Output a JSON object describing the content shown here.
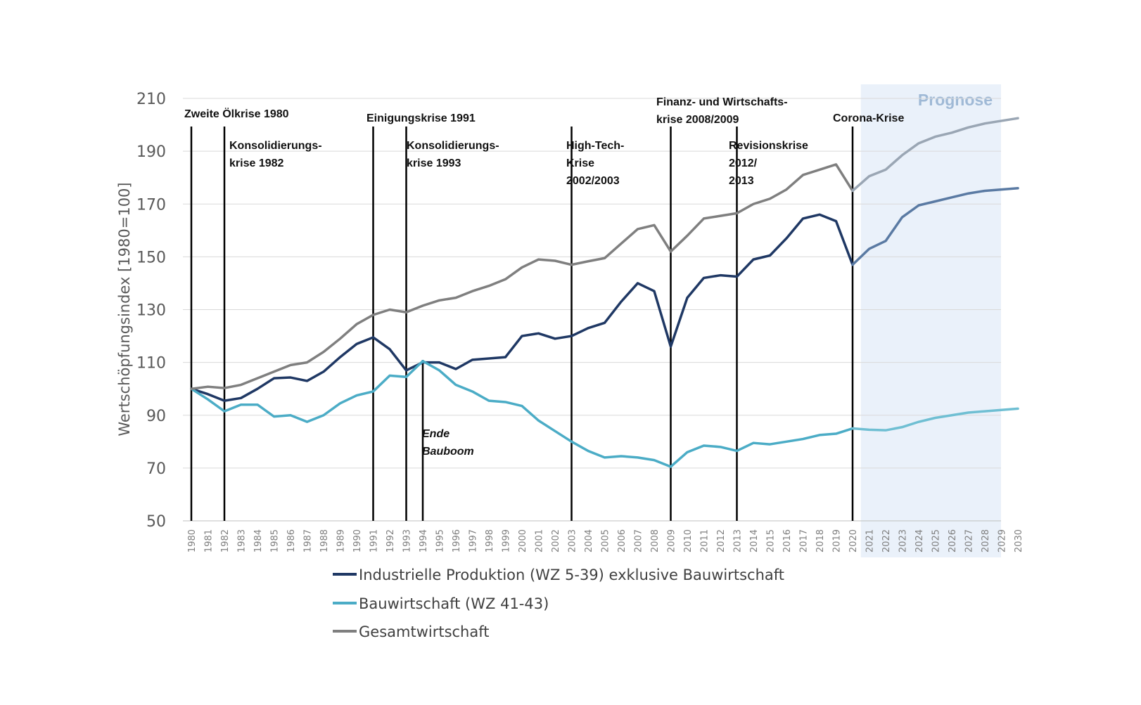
{
  "chart_data": {
    "type": "line",
    "title": "",
    "ylabel": "Wertschöpfungsindex [1980=100]",
    "xlabel": "",
    "ylim": [
      50,
      210
    ],
    "yticks": [
      50,
      70,
      90,
      110,
      130,
      150,
      170,
      190,
      210
    ],
    "grid": true,
    "legend_position": "bottom",
    "x": [
      1980,
      1981,
      1982,
      1983,
      1984,
      1985,
      1986,
      1987,
      1988,
      1989,
      1990,
      1991,
      1992,
      1993,
      1994,
      1995,
      1996,
      1997,
      1998,
      1999,
      2000,
      2001,
      2002,
      2003,
      2004,
      2005,
      2006,
      2007,
      2008,
      2009,
      2010,
      2011,
      2012,
      2013,
      2014,
      2015,
      2016,
      2017,
      2018,
      2019,
      2020,
      2021,
      2022,
      2023,
      2024,
      2025,
      2026,
      2027,
      2028,
      2029,
      2030
    ],
    "forecast_start": 2021,
    "forecast_label": "Prognose",
    "series": [
      {
        "name": "Industrielle Produktion (WZ 5-39) exklusive Bauwirtschaft",
        "color": "#1f3864",
        "forecast_color": "#5a7aa3",
        "values": [
          100,
          98,
          95.5,
          96.5,
          100,
          104,
          104.3,
          103,
          106.5,
          112,
          117,
          119.5,
          115,
          107,
          110,
          110,
          107.5,
          111,
          111.5,
          112,
          120,
          121,
          119,
          120,
          123,
          125,
          133,
          140,
          137,
          116,
          134.5,
          142,
          143,
          142.5,
          149,
          150.5,
          157,
          164.5,
          166,
          163.5,
          147,
          153,
          156,
          165,
          169.5,
          171,
          172.5,
          174,
          175,
          175.5,
          176
        ]
      },
      {
        "name": "Bauwirtschaft (WZ 41-43)",
        "color": "#4bacc6",
        "forecast_color": "#6fbfd3",
        "values": [
          100,
          96,
          91.5,
          94,
          94,
          89.5,
          90,
          87.5,
          90,
          94.5,
          97.5,
          99,
          105,
          104.5,
          110.5,
          107,
          101.5,
          99,
          95.5,
          95,
          93.5,
          88,
          84,
          80,
          76.5,
          74,
          74.5,
          74,
          73,
          70.5,
          76,
          78.5,
          78,
          76.5,
          79.5,
          79,
          80,
          81,
          82.5,
          83,
          85,
          84.5,
          84.3,
          85.5,
          87.5,
          89,
          90,
          91,
          91.5,
          92,
          92.5
        ]
      },
      {
        "name": "Gesamtwirtschaft",
        "color": "#7f7f7f",
        "forecast_color": "#9aa6b4",
        "values": [
          100,
          100.8,
          100.3,
          101.5,
          104,
          106.5,
          109,
          110,
          114,
          119,
          124.5,
          128,
          130,
          129,
          131.5,
          133.5,
          134.5,
          137,
          139,
          141.5,
          146,
          149,
          148.5,
          147,
          148.3,
          149.5,
          155,
          160.5,
          162,
          152,
          158,
          164.5,
          165.5,
          166.5,
          170,
          172,
          175.5,
          181,
          183,
          185,
          175,
          180.5,
          183,
          188.5,
          193,
          195.5,
          197,
          199,
          200.5,
          201.5,
          202.5
        ]
      }
    ],
    "crisis_lines": [
      {
        "year": 1980,
        "label": [
          "Zweite Ölkrise 1980"
        ],
        "italic": false
      },
      {
        "year": 1982,
        "label": [
          "Konsolidierungs-",
          "krise 1982"
        ],
        "italic": false
      },
      {
        "year": 1991,
        "label": [
          "Einigungskrise 1991"
        ],
        "italic": false
      },
      {
        "year": 1993,
        "label": [
          "Konsolidierungs-",
          "krise 1993"
        ],
        "italic": false
      },
      {
        "year": 1994,
        "label": [
          "Ende",
          "Bauboom"
        ],
        "italic": true
      },
      {
        "year": 2003,
        "label": [
          "High-Tech-",
          "Krise",
          "2002/2003"
        ],
        "italic": false
      },
      {
        "year": 2009,
        "label": [
          "Finanz- und Wirtschafts-",
          "krise 2008/2009"
        ],
        "italic": false
      },
      {
        "year": 2013,
        "label": [
          "Revisionskrise",
          "2012/",
          "2013"
        ],
        "italic": false
      },
      {
        "year": 2020,
        "label": [
          "Corona-Krise"
        ],
        "italic": false
      }
    ]
  }
}
